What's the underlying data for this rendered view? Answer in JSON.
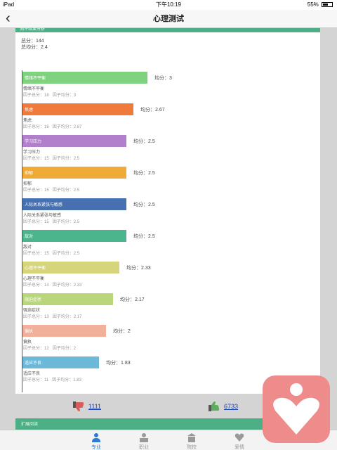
{
  "status": {
    "device": "iPad",
    "time": "下午10:19",
    "battery": "55%"
  },
  "nav": {
    "back_glyph": "‹",
    "title": "心理测试"
  },
  "header_band": {
    "text": "测评结果分析"
  },
  "summary": {
    "total": "总分：144",
    "average": "总均分：2.4"
  },
  "factors": [
    {
      "bar_label": "情绪不平衡",
      "name": "情绪不平衡",
      "avg_text": "均分：3",
      "total_text": "因子总分：18",
      "factor_avg_text": "因子均分：3",
      "value": 3,
      "color": "#7fd37f"
    },
    {
      "bar_label": "焦虑",
      "name": "焦虑",
      "avg_text": "均分：2.67",
      "total_text": "因子总分：16",
      "factor_avg_text": "因子均分：2.67",
      "value": 2.67,
      "color": "#ef7a3c"
    },
    {
      "bar_label": "学习压力",
      "name": "学习压力",
      "avg_text": "均分：2.5",
      "total_text": "因子总分：15",
      "factor_avg_text": "因子均分：2.5",
      "value": 2.5,
      "color": "#b17fcc"
    },
    {
      "bar_label": "抑郁",
      "name": "抑郁",
      "avg_text": "均分：2.5",
      "total_text": "因子总分：15",
      "factor_avg_text": "因子均分：2.5",
      "value": 2.5,
      "color": "#efab36"
    },
    {
      "bar_label": "人际关系紧张与敏感",
      "name": "人际关系紧张与敏感",
      "avg_text": "均分：2.5",
      "total_text": "因子总分：15",
      "factor_avg_text": "因子均分：2.5",
      "value": 2.5,
      "color": "#4670b0"
    },
    {
      "bar_label": "敌对",
      "name": "敌对",
      "avg_text": "均分：2.5",
      "total_text": "因子总分：15",
      "factor_avg_text": "因子均分：2.5",
      "value": 2.5,
      "color": "#4cb58b"
    },
    {
      "bar_label": "心理不平衡",
      "name": "心理不平衡",
      "avg_text": "均分：2.33",
      "total_text": "因子总分：14",
      "factor_avg_text": "因子均分：2.33",
      "value": 2.33,
      "color": "#d6d57b"
    },
    {
      "bar_label": "强迫症状",
      "name": "强迫症状",
      "avg_text": "均分：2.17",
      "total_text": "因子总分：13",
      "factor_avg_text": "因子均分：2.17",
      "value": 2.17,
      "color": "#b9d67a"
    },
    {
      "bar_label": "偏执",
      "name": "偏执",
      "avg_text": "均分：2",
      "total_text": "因子总分：12",
      "factor_avg_text": "因子均分：2",
      "value": 2,
      "color": "#f1b09a"
    },
    {
      "bar_label": "适应不良",
      "name": "适应不良",
      "avg_text": "均分：1.83",
      "total_text": "因子总分：11",
      "factor_avg_text": "因子均分：1.83",
      "value": 1.83,
      "color": "#6bb8d9"
    }
  ],
  "votes": {
    "down": "1111",
    "up": "6733"
  },
  "next_band": {
    "text": "扩展阅读"
  },
  "tabs": [
    {
      "label": "专业",
      "icon": "person-icon",
      "active": true
    },
    {
      "label": "职业",
      "icon": "briefcase-icon",
      "active": false
    },
    {
      "label": "院校",
      "icon": "school-icon",
      "active": false
    },
    {
      "label": "爱情",
      "icon": "heart-icon",
      "active": false
    }
  ]
}
